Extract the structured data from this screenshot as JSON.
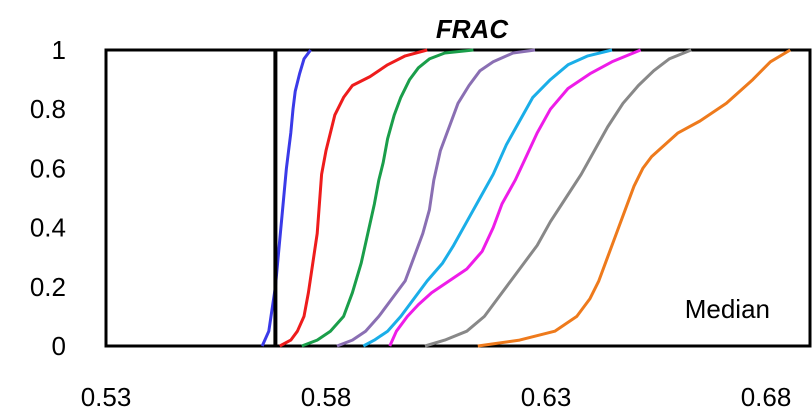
{
  "chart_data": {
    "type": "line",
    "title": "FRAC",
    "xlabel": "",
    "ylabel": "",
    "xlim": [
      0.53,
      0.69
    ],
    "ylim": [
      0,
      1
    ],
    "x_ticks": [
      "0.53",
      "0.58",
      "0.63",
      "0.68"
    ],
    "x_tick_values": [
      0.53,
      0.58,
      0.63,
      0.68
    ],
    "y_ticks": [
      "0",
      "0.2",
      "0.4",
      "0.6",
      "0.8",
      "1"
    ],
    "y_tick_values": [
      0,
      0.2,
      0.4,
      0.6,
      0.8,
      1
    ],
    "grid": false,
    "annotation": "Median",
    "median_value": 0.5685,
    "series": [
      {
        "color": "#3a3ae8",
        "x": [
          0.5655,
          0.567,
          0.5675,
          0.568,
          0.5685,
          0.569,
          0.5695,
          0.57,
          0.5705,
          0.571,
          0.5715,
          0.572,
          0.5725,
          0.573,
          0.574,
          0.575,
          0.5765
        ],
        "y": [
          0,
          0.05,
          0.1,
          0.15,
          0.2,
          0.28,
          0.36,
          0.44,
          0.52,
          0.6,
          0.66,
          0.72,
          0.8,
          0.86,
          0.92,
          0.97,
          1.0
        ]
      },
      {
        "color": "#ee1c1c",
        "x": [
          0.5695,
          0.572,
          0.5735,
          0.575,
          0.576,
          0.577,
          0.578,
          0.5785,
          0.579,
          0.58,
          0.581,
          0.582,
          0.584,
          0.586,
          0.59,
          0.594,
          0.598,
          0.603
        ],
        "y": [
          0,
          0.02,
          0.05,
          0.1,
          0.18,
          0.28,
          0.38,
          0.48,
          0.58,
          0.66,
          0.72,
          0.78,
          0.84,
          0.88,
          0.91,
          0.95,
          0.98,
          1.0
        ]
      },
      {
        "color": "#1a9e4a",
        "x": [
          0.5745,
          0.578,
          0.581,
          0.584,
          0.586,
          0.588,
          0.5895,
          0.591,
          0.592,
          0.593,
          0.594,
          0.5955,
          0.597,
          0.599,
          0.601,
          0.6035,
          0.607,
          0.6135
        ],
        "y": [
          0,
          0.02,
          0.05,
          0.1,
          0.18,
          0.28,
          0.38,
          0.48,
          0.56,
          0.62,
          0.7,
          0.78,
          0.84,
          0.9,
          0.94,
          0.97,
          0.99,
          1.0
        ]
      },
      {
        "color": "#8a6fb3",
        "x": [
          0.5825,
          0.586,
          0.589,
          0.592,
          0.595,
          0.598,
          0.6,
          0.602,
          0.6035,
          0.6045,
          0.606,
          0.608,
          0.61,
          0.6125,
          0.615,
          0.618,
          0.6225,
          0.6275
        ],
        "y": [
          0,
          0.02,
          0.05,
          0.1,
          0.16,
          0.22,
          0.3,
          0.38,
          0.46,
          0.56,
          0.66,
          0.74,
          0.82,
          0.88,
          0.93,
          0.96,
          0.99,
          1.0
        ]
      },
      {
        "color": "#1aaee8",
        "x": [
          0.5885,
          0.591,
          0.594,
          0.597,
          0.6,
          0.603,
          0.6065,
          0.609,
          0.612,
          0.615,
          0.618,
          0.621,
          0.624,
          0.627,
          0.631,
          0.635,
          0.6395,
          0.645
        ],
        "y": [
          0,
          0.02,
          0.05,
          0.1,
          0.16,
          0.22,
          0.28,
          0.34,
          0.42,
          0.5,
          0.58,
          0.68,
          0.76,
          0.84,
          0.9,
          0.95,
          0.98,
          1.0
        ]
      },
      {
        "color": "#ee1ce8",
        "x": [
          0.5945,
          0.596,
          0.5985,
          0.601,
          0.604,
          0.608,
          0.612,
          0.6155,
          0.618,
          0.62,
          0.623,
          0.6255,
          0.628,
          0.631,
          0.635,
          0.64,
          0.645,
          0.6515
        ],
        "y": [
          0,
          0.05,
          0.1,
          0.14,
          0.18,
          0.22,
          0.26,
          0.32,
          0.4,
          0.48,
          0.56,
          0.64,
          0.72,
          0.8,
          0.87,
          0.92,
          0.96,
          1.0
        ]
      },
      {
        "color": "#888888",
        "x": [
          0.6025,
          0.607,
          0.612,
          0.616,
          0.619,
          0.622,
          0.625,
          0.628,
          0.631,
          0.6345,
          0.638,
          0.641,
          0.644,
          0.6475,
          0.651,
          0.6545,
          0.658,
          0.663
        ],
        "y": [
          0,
          0.02,
          0.05,
          0.1,
          0.16,
          0.22,
          0.28,
          0.34,
          0.42,
          0.5,
          0.58,
          0.66,
          0.74,
          0.82,
          0.88,
          0.93,
          0.97,
          1.0
        ]
      },
      {
        "color": "#ee7a1c",
        "x": [
          0.6145,
          0.624,
          0.632,
          0.637,
          0.64,
          0.642,
          0.644,
          0.646,
          0.648,
          0.65,
          0.652,
          0.654,
          0.657,
          0.66,
          0.665,
          0.671,
          0.677,
          0.681,
          0.6855
        ],
        "y": [
          0,
          0.02,
          0.05,
          0.1,
          0.16,
          0.22,
          0.3,
          0.38,
          0.46,
          0.54,
          0.6,
          0.64,
          0.68,
          0.72,
          0.76,
          0.82,
          0.9,
          0.96,
          1.0
        ]
      }
    ]
  }
}
